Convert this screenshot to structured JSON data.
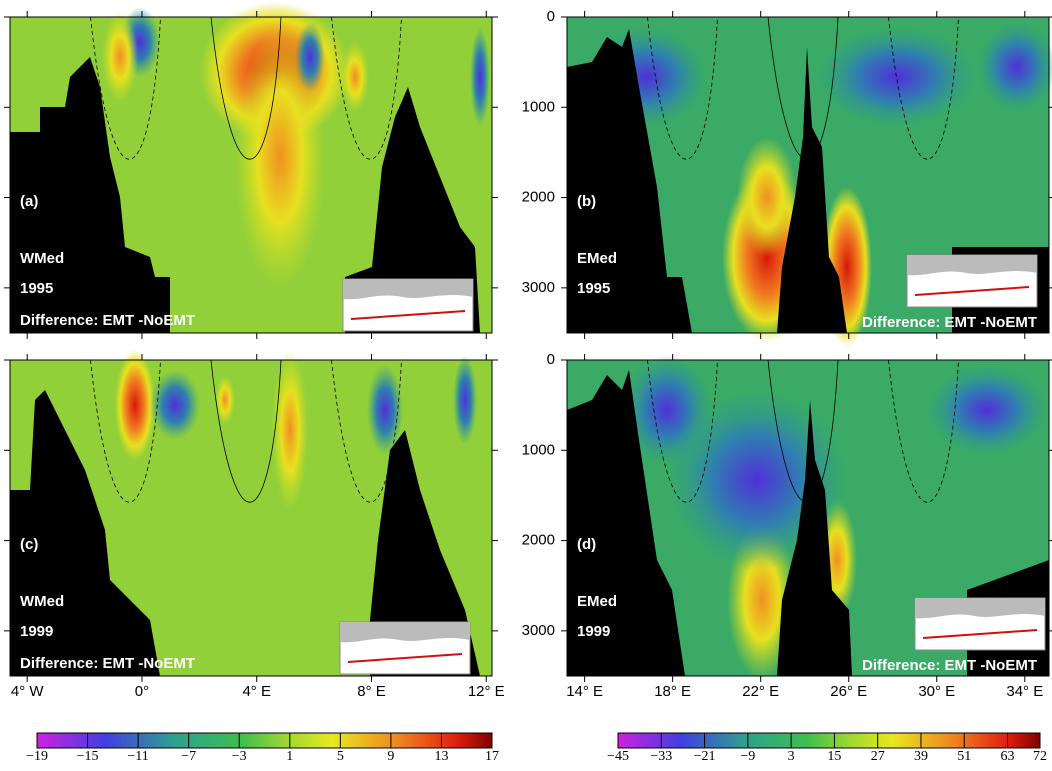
{
  "chart_data": [
    {
      "type": "contour",
      "label": "(a)",
      "region": "WMed",
      "year": "1995",
      "annotation": "Difference: EMT -NoEMT",
      "xlim": [
        -4.6,
        12.2
      ]
    },
    {
      "type": "contour",
      "label": "(b)",
      "region": "EMed",
      "year": "1995",
      "annotation": "Difference: EMT -NoEMT",
      "xlim": [
        13.2,
        35.1
      ],
      "ylim": [
        0,
        3500
      ],
      "yticks": [
        0,
        1000,
        2000,
        3000
      ]
    },
    {
      "type": "contour",
      "label": "(c)",
      "region": "WMed",
      "year": "1999",
      "annotation": "Difference: EMT -NoEMT",
      "xlim": [
        -4.6,
        12.2
      ],
      "xticks": [
        {
          "value": -4,
          "label": "4° W"
        },
        {
          "value": 0,
          "label": "0°"
        },
        {
          "value": 4,
          "label": "4° E"
        },
        {
          "value": 8,
          "label": "8° E"
        },
        {
          "value": 12,
          "label": "12° E"
        }
      ]
    },
    {
      "type": "contour",
      "label": "(d)",
      "region": "EMed",
      "year": "1999",
      "annotation": "Difference: EMT -NoEMT",
      "xlim": [
        13.2,
        35.1
      ],
      "ylim": [
        0,
        3500
      ],
      "yticks": [
        0,
        1000,
        2000,
        3000
      ],
      "xticks": [
        {
          "value": 14,
          "label": "14° E"
        },
        {
          "value": 18,
          "label": "18° E"
        },
        {
          "value": 22,
          "label": "22° E"
        },
        {
          "value": 26,
          "label": "26° E"
        },
        {
          "value": 30,
          "label": "30° E"
        },
        {
          "value": 34,
          "label": "34° E"
        }
      ]
    }
  ],
  "colorbars": [
    {
      "clim": [
        -19,
        17
      ],
      "ticks": [
        {
          "value": -19,
          "label": "−19"
        },
        {
          "value": -15,
          "label": "−15"
        },
        {
          "value": -11,
          "label": "−11"
        },
        {
          "value": -7,
          "label": "−7"
        },
        {
          "value": -3,
          "label": "−3"
        },
        1,
        5,
        9,
        13,
        17
      ]
    },
    {
      "clim": [
        -45,
        72
      ],
      "ticks": [
        {
          "value": -45,
          "label": "−45"
        },
        {
          "value": -33,
          "label": "−33"
        },
        {
          "value": -21,
          "label": "−21"
        },
        {
          "value": -9,
          "label": "−9"
        },
        3,
        15,
        27,
        39,
        51,
        63,
        72
      ]
    }
  ]
}
